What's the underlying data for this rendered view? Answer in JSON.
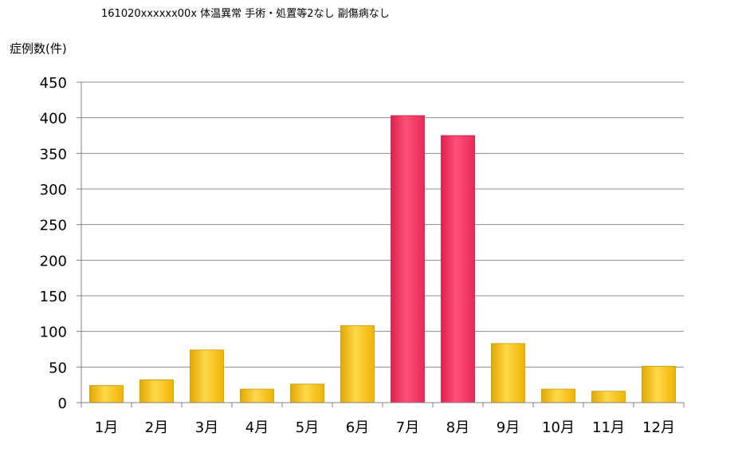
{
  "chart_data": {
    "type": "bar",
    "title": "161020xxxxxx00x 体温異常 手術・処置等2なし 副傷病なし",
    "ylabel": "症例数(件)",
    "xlabel": "",
    "categories": [
      "1月",
      "2月",
      "3月",
      "4月",
      "5月",
      "6月",
      "7月",
      "8月",
      "9月",
      "10月",
      "11月",
      "12月"
    ],
    "values": [
      24,
      32,
      74,
      19,
      26,
      108,
      403,
      375,
      83,
      19,
      16,
      51
    ],
    "ylim": [
      0,
      450
    ],
    "yticks": [
      0,
      50,
      100,
      150,
      200,
      250,
      300,
      350,
      400,
      450
    ],
    "grid": true,
    "legend": "none",
    "colors": {
      "normal": "#FFC300",
      "highlight": "#FF3060",
      "highlight_categories": [
        "7月",
        "8月"
      ],
      "grid": "#8c8c8c",
      "axis": "#808080"
    }
  }
}
